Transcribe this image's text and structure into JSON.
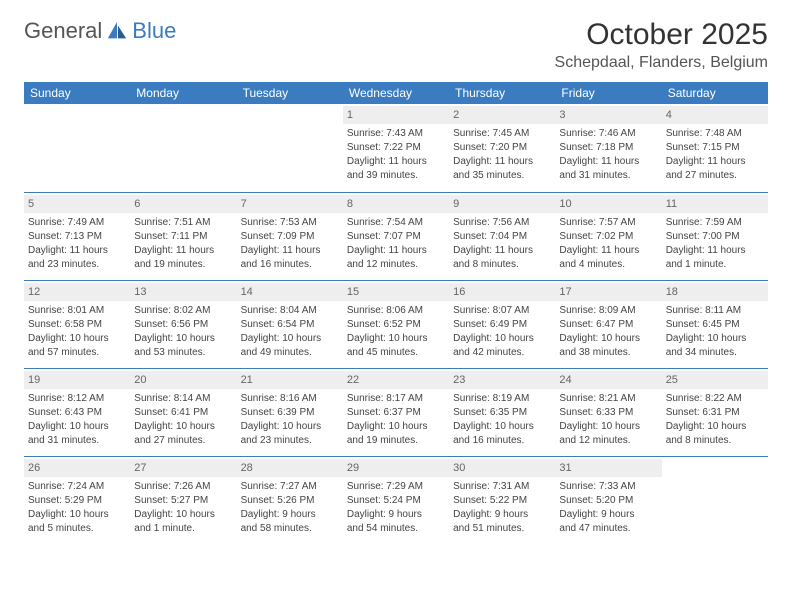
{
  "brand": {
    "part1": "General",
    "part2": "Blue"
  },
  "title": {
    "month": "October 2025",
    "location": "Schepdaal, Flanders, Belgium"
  },
  "weekday_header_bg": "#3b7bbf",
  "weekday_header_fg": "#ffffff",
  "daynum_bg": "#eeeeee",
  "border_color": "#3b7bbf",
  "weekdays": [
    "Sunday",
    "Monday",
    "Tuesday",
    "Wednesday",
    "Thursday",
    "Friday",
    "Saturday"
  ],
  "weeks": [
    [
      {
        "n": "",
        "sr": "",
        "ss": "",
        "d1": "",
        "d2": ""
      },
      {
        "n": "",
        "sr": "",
        "ss": "",
        "d1": "",
        "d2": ""
      },
      {
        "n": "",
        "sr": "",
        "ss": "",
        "d1": "",
        "d2": ""
      },
      {
        "n": "1",
        "sr": "Sunrise: 7:43 AM",
        "ss": "Sunset: 7:22 PM",
        "d1": "Daylight: 11 hours",
        "d2": "and 39 minutes."
      },
      {
        "n": "2",
        "sr": "Sunrise: 7:45 AM",
        "ss": "Sunset: 7:20 PM",
        "d1": "Daylight: 11 hours",
        "d2": "and 35 minutes."
      },
      {
        "n": "3",
        "sr": "Sunrise: 7:46 AM",
        "ss": "Sunset: 7:18 PM",
        "d1": "Daylight: 11 hours",
        "d2": "and 31 minutes."
      },
      {
        "n": "4",
        "sr": "Sunrise: 7:48 AM",
        "ss": "Sunset: 7:15 PM",
        "d1": "Daylight: 11 hours",
        "d2": "and 27 minutes."
      }
    ],
    [
      {
        "n": "5",
        "sr": "Sunrise: 7:49 AM",
        "ss": "Sunset: 7:13 PM",
        "d1": "Daylight: 11 hours",
        "d2": "and 23 minutes."
      },
      {
        "n": "6",
        "sr": "Sunrise: 7:51 AM",
        "ss": "Sunset: 7:11 PM",
        "d1": "Daylight: 11 hours",
        "d2": "and 19 minutes."
      },
      {
        "n": "7",
        "sr": "Sunrise: 7:53 AM",
        "ss": "Sunset: 7:09 PM",
        "d1": "Daylight: 11 hours",
        "d2": "and 16 minutes."
      },
      {
        "n": "8",
        "sr": "Sunrise: 7:54 AM",
        "ss": "Sunset: 7:07 PM",
        "d1": "Daylight: 11 hours",
        "d2": "and 12 minutes."
      },
      {
        "n": "9",
        "sr": "Sunrise: 7:56 AM",
        "ss": "Sunset: 7:04 PM",
        "d1": "Daylight: 11 hours",
        "d2": "and 8 minutes."
      },
      {
        "n": "10",
        "sr": "Sunrise: 7:57 AM",
        "ss": "Sunset: 7:02 PM",
        "d1": "Daylight: 11 hours",
        "d2": "and 4 minutes."
      },
      {
        "n": "11",
        "sr": "Sunrise: 7:59 AM",
        "ss": "Sunset: 7:00 PM",
        "d1": "Daylight: 11 hours",
        "d2": "and 1 minute."
      }
    ],
    [
      {
        "n": "12",
        "sr": "Sunrise: 8:01 AM",
        "ss": "Sunset: 6:58 PM",
        "d1": "Daylight: 10 hours",
        "d2": "and 57 minutes."
      },
      {
        "n": "13",
        "sr": "Sunrise: 8:02 AM",
        "ss": "Sunset: 6:56 PM",
        "d1": "Daylight: 10 hours",
        "d2": "and 53 minutes."
      },
      {
        "n": "14",
        "sr": "Sunrise: 8:04 AM",
        "ss": "Sunset: 6:54 PM",
        "d1": "Daylight: 10 hours",
        "d2": "and 49 minutes."
      },
      {
        "n": "15",
        "sr": "Sunrise: 8:06 AM",
        "ss": "Sunset: 6:52 PM",
        "d1": "Daylight: 10 hours",
        "d2": "and 45 minutes."
      },
      {
        "n": "16",
        "sr": "Sunrise: 8:07 AM",
        "ss": "Sunset: 6:49 PM",
        "d1": "Daylight: 10 hours",
        "d2": "and 42 minutes."
      },
      {
        "n": "17",
        "sr": "Sunrise: 8:09 AM",
        "ss": "Sunset: 6:47 PM",
        "d1": "Daylight: 10 hours",
        "d2": "and 38 minutes."
      },
      {
        "n": "18",
        "sr": "Sunrise: 8:11 AM",
        "ss": "Sunset: 6:45 PM",
        "d1": "Daylight: 10 hours",
        "d2": "and 34 minutes."
      }
    ],
    [
      {
        "n": "19",
        "sr": "Sunrise: 8:12 AM",
        "ss": "Sunset: 6:43 PM",
        "d1": "Daylight: 10 hours",
        "d2": "and 31 minutes."
      },
      {
        "n": "20",
        "sr": "Sunrise: 8:14 AM",
        "ss": "Sunset: 6:41 PM",
        "d1": "Daylight: 10 hours",
        "d2": "and 27 minutes."
      },
      {
        "n": "21",
        "sr": "Sunrise: 8:16 AM",
        "ss": "Sunset: 6:39 PM",
        "d1": "Daylight: 10 hours",
        "d2": "and 23 minutes."
      },
      {
        "n": "22",
        "sr": "Sunrise: 8:17 AM",
        "ss": "Sunset: 6:37 PM",
        "d1": "Daylight: 10 hours",
        "d2": "and 19 minutes."
      },
      {
        "n": "23",
        "sr": "Sunrise: 8:19 AM",
        "ss": "Sunset: 6:35 PM",
        "d1": "Daylight: 10 hours",
        "d2": "and 16 minutes."
      },
      {
        "n": "24",
        "sr": "Sunrise: 8:21 AM",
        "ss": "Sunset: 6:33 PM",
        "d1": "Daylight: 10 hours",
        "d2": "and 12 minutes."
      },
      {
        "n": "25",
        "sr": "Sunrise: 8:22 AM",
        "ss": "Sunset: 6:31 PM",
        "d1": "Daylight: 10 hours",
        "d2": "and 8 minutes."
      }
    ],
    [
      {
        "n": "26",
        "sr": "Sunrise: 7:24 AM",
        "ss": "Sunset: 5:29 PM",
        "d1": "Daylight: 10 hours",
        "d2": "and 5 minutes."
      },
      {
        "n": "27",
        "sr": "Sunrise: 7:26 AM",
        "ss": "Sunset: 5:27 PM",
        "d1": "Daylight: 10 hours",
        "d2": "and 1 minute."
      },
      {
        "n": "28",
        "sr": "Sunrise: 7:27 AM",
        "ss": "Sunset: 5:26 PM",
        "d1": "Daylight: 9 hours",
        "d2": "and 58 minutes."
      },
      {
        "n": "29",
        "sr": "Sunrise: 7:29 AM",
        "ss": "Sunset: 5:24 PM",
        "d1": "Daylight: 9 hours",
        "d2": "and 54 minutes."
      },
      {
        "n": "30",
        "sr": "Sunrise: 7:31 AM",
        "ss": "Sunset: 5:22 PM",
        "d1": "Daylight: 9 hours",
        "d2": "and 51 minutes."
      },
      {
        "n": "31",
        "sr": "Sunrise: 7:33 AM",
        "ss": "Sunset: 5:20 PM",
        "d1": "Daylight: 9 hours",
        "d2": "and 47 minutes."
      },
      {
        "n": "",
        "sr": "",
        "ss": "",
        "d1": "",
        "d2": ""
      }
    ]
  ]
}
